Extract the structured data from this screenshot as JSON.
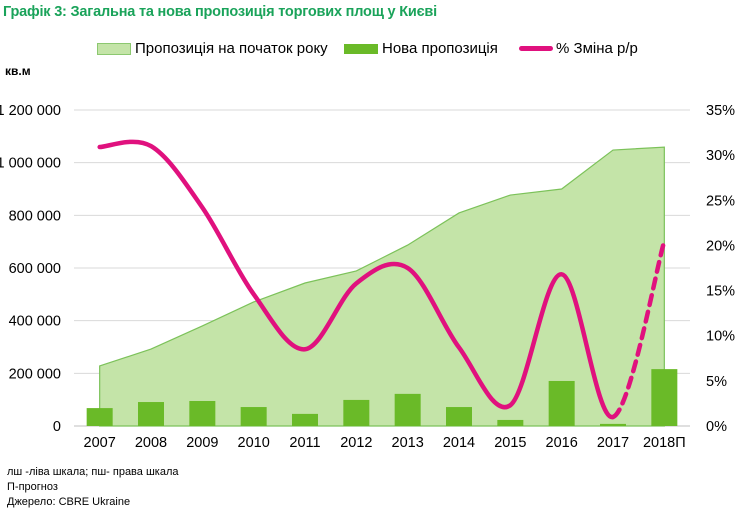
{
  "header": {
    "title": "Графік 3: Загальна та нова пропозиція торгових площ у Києві",
    "unit_label": "кв.м"
  },
  "legend": {
    "items": [
      {
        "label": "Пропозиція на початок року",
        "type": "area",
        "color": "#c4e4a8"
      },
      {
        "label": "Нова пропозиція",
        "type": "bar",
        "color": "#6aba28"
      },
      {
        "label": "% Зміна р/р",
        "type": "line",
        "color": "#e0117e"
      }
    ],
    "placement": "top"
  },
  "chart_data": {
    "type": "bar",
    "title": "Графік 3: Загальна та нова пропозиція торгових площ у Києві",
    "categories": [
      "2007",
      "2008",
      "2009",
      "2010",
      "2011",
      "2012",
      "2013",
      "2014",
      "2015",
      "2016",
      "2017",
      "2018П"
    ],
    "series": [
      {
        "name": "Пропозиція на початок року",
        "type": "area",
        "axis": "left",
        "color": "#c4e4a8",
        "values": [
          228000,
          292000,
          380000,
          471000,
          543000,
          589000,
          687000,
          809000,
          877000,
          900000,
          1048000,
          1059000
        ]
      },
      {
        "name": "Нова пропозиція",
        "type": "bar",
        "axis": "left",
        "color": "#6aba28",
        "values": [
          68000,
          91000,
          95000,
          72000,
          46000,
          99000,
          122000,
          72000,
          23000,
          171000,
          8000,
          216000
        ]
      },
      {
        "name": "% Зміна р/р",
        "type": "line",
        "axis": "right",
        "color": "#e0117e",
        "dashed_from_index": 10,
        "values": [
          30.9,
          31.0,
          24.2,
          14.6,
          8.5,
          15.8,
          17.5,
          8.7,
          2.3,
          16.8,
          1.0,
          20.5
        ]
      }
    ],
    "y_left": {
      "label": "кв.м",
      "range": [
        0,
        1200000
      ],
      "ticks": [
        0,
        200000,
        400000,
        600000,
        800000,
        1000000,
        1200000
      ],
      "tick_labels": [
        "0",
        "200 000",
        "400 000",
        "600 000",
        "800 000",
        "1 000 000",
        "1 200 000"
      ]
    },
    "y_right": {
      "label": "",
      "range": [
        0,
        35
      ],
      "ticks": [
        0,
        5,
        10,
        15,
        20,
        25,
        30,
        35
      ],
      "tick_labels": [
        "0%",
        "5%",
        "10%",
        "15%",
        "20%",
        "25%",
        "30%",
        "35%"
      ]
    },
    "xlabel": "",
    "grid": true
  },
  "footnotes": [
    "лш -ліва шкала; пш- права шкала",
    "П-прогноз",
    "Джерело:  CBRE Ukraine"
  ]
}
